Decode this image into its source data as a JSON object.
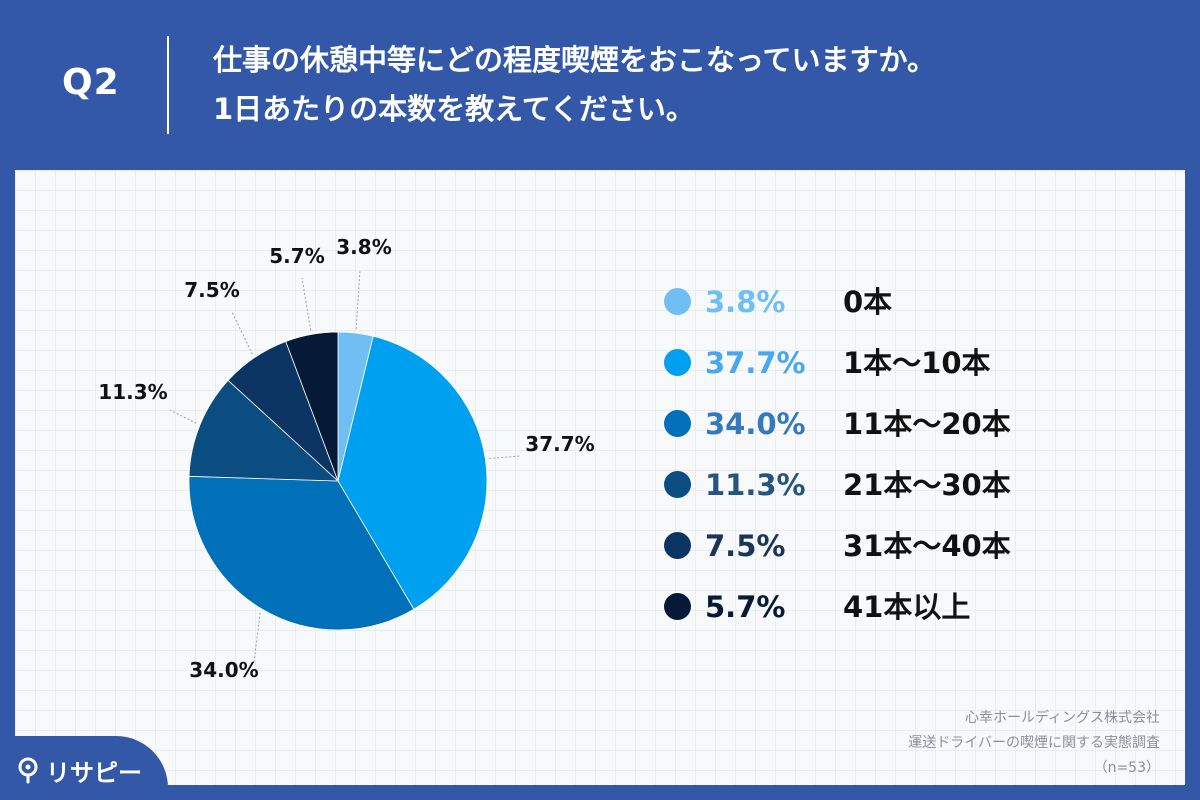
{
  "header": {
    "q_label": "Q2",
    "question_line1": "仕事の休憩中等にどの程度喫煙をおこなっていますか。",
    "question_line2": "1日あたりの本数を教えてください。"
  },
  "chart_data": {
    "type": "pie",
    "unit": "%",
    "slices": [
      {
        "label": "0本",
        "value": 3.8,
        "value_label": "3.8%",
        "color": "#6fbff5"
      },
      {
        "label": "1本〜10本",
        "value": 37.7,
        "value_label": "37.7%",
        "color": "#00a0f0"
      },
      {
        "label": "11本〜20本",
        "value": 34.0,
        "value_label": "34.0%",
        "color": "#0070b8"
      },
      {
        "label": "21本〜30本",
        "value": 11.3,
        "value_label": "11.3%",
        "color": "#0b4d80"
      },
      {
        "label": "31本〜40本",
        "value": 7.5,
        "value_label": "7.5%",
        "color": "#0b3463"
      },
      {
        "label": "41本以上",
        "value": 5.7,
        "value_label": "5.7%",
        "color": "#061937"
      }
    ],
    "legend_placement": "right",
    "legend_pct_colors": [
      "#6fbff5",
      "#49a6f0",
      "#3478bf",
      "#25557f",
      "#1a3558",
      "#061937"
    ]
  },
  "source": {
    "line1": "心幸ホールディングス株式会社",
    "line2": "運送ドライバーの喫煙に関する実態調査",
    "line3": "（n=53）"
  },
  "brand": {
    "logo_text": "リサピー",
    "logo_icon": "pin-icon"
  }
}
